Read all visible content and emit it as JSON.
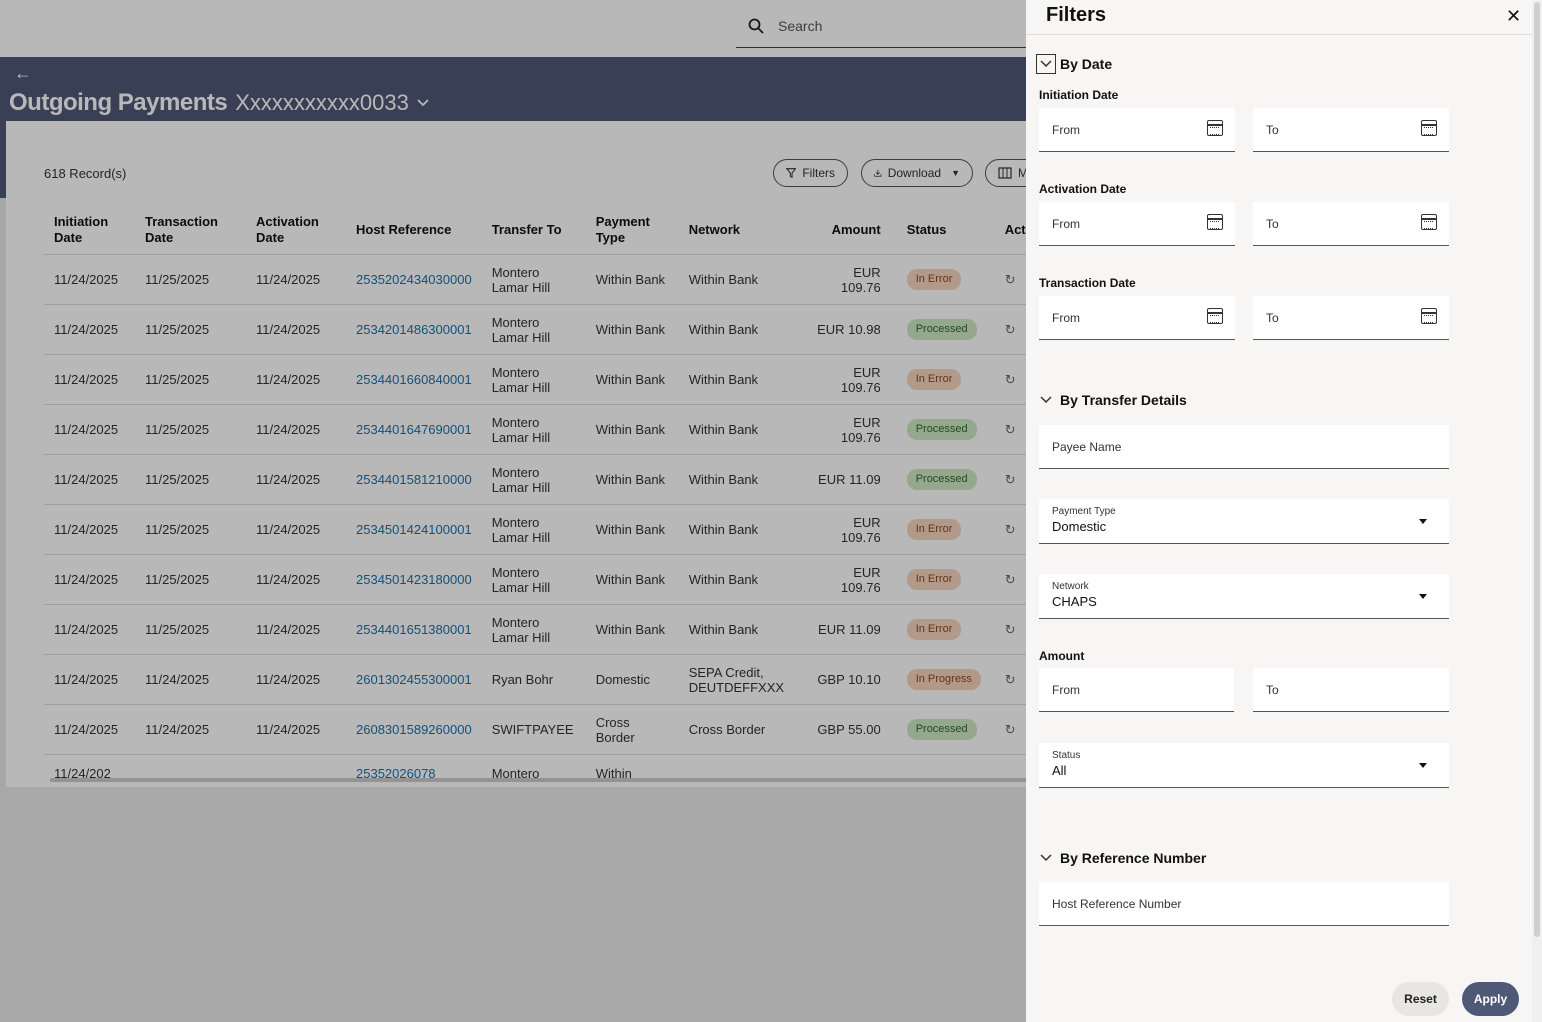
{
  "search": {
    "placeholder": "Search"
  },
  "header": {
    "title": "Outgoing Payments",
    "account": "Xxxxxxxxxxx0033"
  },
  "toolbar": {
    "records": "618 Record(s)",
    "filters_label": "Filters",
    "download_label": "Download",
    "columns_label": "M"
  },
  "table": {
    "headers": [
      "Initiation Date",
      "Transaction Date",
      "Activation Date",
      "Host Reference",
      "Transfer To",
      "Payment Type",
      "Network",
      "Amount",
      "Status",
      "Act"
    ],
    "rows": [
      {
        "init": "11/24/2025",
        "trans": "11/25/2025",
        "act": "11/24/2025",
        "ref": "2535202434030000",
        "to": "Montero Lamar Hill",
        "type": "Within Bank",
        "network": "Within Bank",
        "amount": "EUR 109.76",
        "status": "In Error"
      },
      {
        "init": "11/24/2025",
        "trans": "11/25/2025",
        "act": "11/24/2025",
        "ref": "2534201486300001",
        "to": "Montero Lamar Hill",
        "type": "Within Bank",
        "network": "Within Bank",
        "amount": "EUR 10.98",
        "status": "Processed"
      },
      {
        "init": "11/24/2025",
        "trans": "11/25/2025",
        "act": "11/24/2025",
        "ref": "2534401660840001",
        "to": "Montero Lamar Hill",
        "type": "Within Bank",
        "network": "Within Bank",
        "amount": "EUR 109.76",
        "status": "In Error"
      },
      {
        "init": "11/24/2025",
        "trans": "11/25/2025",
        "act": "11/24/2025",
        "ref": "2534401647690001",
        "to": "Montero Lamar Hill",
        "type": "Within Bank",
        "network": "Within Bank",
        "amount": "EUR 109.76",
        "status": "Processed"
      },
      {
        "init": "11/24/2025",
        "trans": "11/25/2025",
        "act": "11/24/2025",
        "ref": "2534401581210000",
        "to": "Montero Lamar Hill",
        "type": "Within Bank",
        "network": "Within Bank",
        "amount": "EUR 11.09",
        "status": "Processed"
      },
      {
        "init": "11/24/2025",
        "trans": "11/25/2025",
        "act": "11/24/2025",
        "ref": "2534501424100001",
        "to": "Montero Lamar Hill",
        "type": "Within Bank",
        "network": "Within Bank",
        "amount": "EUR 109.76",
        "status": "In Error"
      },
      {
        "init": "11/24/2025",
        "trans": "11/25/2025",
        "act": "11/24/2025",
        "ref": "2534501423180000",
        "to": "Montero Lamar Hill",
        "type": "Within Bank",
        "network": "Within Bank",
        "amount": "EUR 109.76",
        "status": "In Error"
      },
      {
        "init": "11/24/2025",
        "trans": "11/25/2025",
        "act": "11/24/2025",
        "ref": "2534401651380001",
        "to": "Montero Lamar Hill",
        "type": "Within Bank",
        "network": "Within Bank",
        "amount": "EUR 11.09",
        "status": "In Error"
      },
      {
        "init": "11/24/2025",
        "trans": "11/24/2025",
        "act": "11/24/2025",
        "ref": "2601302455300001",
        "to": "Ryan Bohr",
        "type": "Domestic",
        "network": "SEPA Credit, DEUTDEFFXXX",
        "amount": "GBP 10.10",
        "status": "In Progress"
      },
      {
        "init": "11/24/2025",
        "trans": "11/24/2025",
        "act": "11/24/2025",
        "ref": "2608301589260000",
        "to": "SWIFTPAYEE",
        "type": "Cross Border",
        "network": "Cross Border",
        "amount": "GBP 55.00",
        "status": "Processed"
      },
      {
        "init": "11/24/202",
        "trans": "",
        "act": "",
        "ref": "25352026078",
        "to": "Montero",
        "type": "Within",
        "network": "",
        "amount": "",
        "status": ""
      }
    ]
  },
  "filters": {
    "title": "Filters",
    "by_date": "By Date",
    "initiation_date": "Initiation Date",
    "activation_date": "Activation Date",
    "transaction_date": "Transaction Date",
    "from": "From",
    "to": "To",
    "by_transfer": "By Transfer Details",
    "payee_name": "Payee Name",
    "payment_type_label": "Payment Type",
    "payment_type_value": "Domestic",
    "network_label": "Network",
    "network_value": "CHAPS",
    "amount": "Amount",
    "status_label": "Status",
    "status_value": "All",
    "by_reference": "By Reference Number",
    "host_ref": "Host Reference Number",
    "reset": "Reset",
    "apply": "Apply"
  },
  "icons": {
    "search": "search-icon",
    "back": "arrow-left-icon",
    "close": "close-icon",
    "calendar": "calendar-icon",
    "chevron": "chevron-down-icon"
  }
}
